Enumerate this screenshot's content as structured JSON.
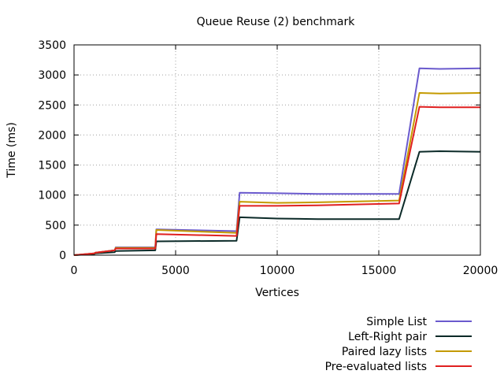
{
  "chart_data": {
    "type": "line",
    "title": "Queue Reuse (2) benchmark",
    "xlabel": "Vertices",
    "ylabel": "Time (ms)",
    "xlim": [
      0,
      20000
    ],
    "ylim": [
      0,
      3500
    ],
    "xticks": [
      0,
      5000,
      10000,
      15000,
      20000
    ],
    "yticks": [
      0,
      500,
      1000,
      1500,
      2000,
      2500,
      3000,
      3500
    ],
    "grid": true,
    "legend_position": "bottom-right",
    "series": [
      {
        "name": "Simple List",
        "color": "#6a5acd",
        "x": [
          0,
          1000,
          1050,
          2000,
          2050,
          4000,
          4050,
          8000,
          8150,
          10000,
          12000,
          16000,
          17000,
          18000,
          20000
        ],
        "y": [
          0,
          30,
          40,
          80,
          130,
          130,
          430,
          400,
          1040,
          1030,
          1020,
          1020,
          3110,
          3100,
          3110
        ]
      },
      {
        "name": "Left-Right pair",
        "color": "#0b2a28",
        "x": [
          0,
          1000,
          1050,
          2000,
          2050,
          4000,
          4050,
          8000,
          8150,
          10000,
          12000,
          16000,
          17000,
          18000,
          20000
        ],
        "y": [
          0,
          20,
          30,
          50,
          70,
          80,
          230,
          240,
          630,
          610,
          600,
          600,
          1720,
          1730,
          1720
        ]
      },
      {
        "name": "Paired lazy lists",
        "color": "#c49a00",
        "x": [
          0,
          1000,
          1050,
          2000,
          2050,
          4000,
          4050,
          8000,
          8150,
          10000,
          12000,
          16000,
          17000,
          18000,
          20000
        ],
        "y": [
          0,
          30,
          40,
          80,
          120,
          120,
          420,
          370,
          890,
          870,
          880,
          910,
          2700,
          2690,
          2700
        ]
      },
      {
        "name": "Pre-evaluated lists",
        "color": "#e02020",
        "x": [
          0,
          1000,
          1050,
          2000,
          2050,
          4000,
          4050,
          8000,
          8150,
          10000,
          12000,
          16000,
          17000,
          18000,
          20000
        ],
        "y": [
          0,
          30,
          40,
          80,
          110,
          110,
          350,
          320,
          820,
          820,
          830,
          860,
          2470,
          2460,
          2460
        ]
      }
    ]
  }
}
